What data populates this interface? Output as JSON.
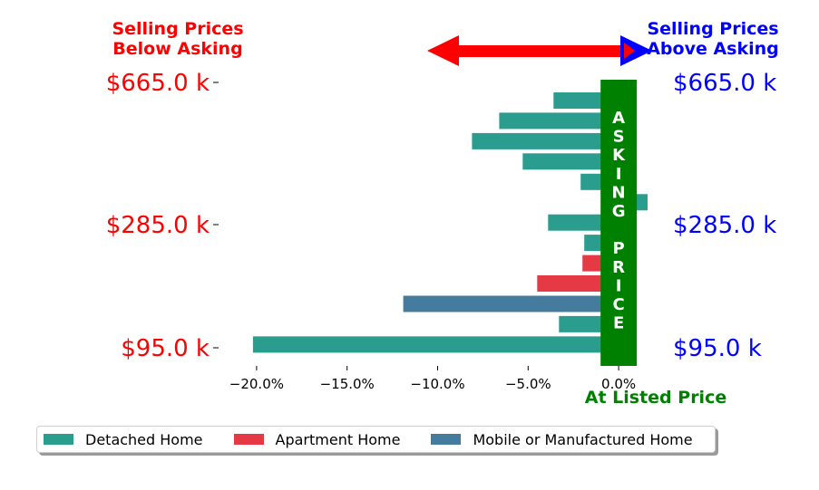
{
  "header": {
    "left_line1": "Selling Prices",
    "left_line2": "Below Asking",
    "right_line1": "Selling Prices",
    "right_line2": "Above Asking"
  },
  "colors": {
    "below": "#ff0000",
    "above": "#0000ff",
    "asking": "#008000",
    "arrow": "#ff0000",
    "arrow_head_right": "#0000ff"
  },
  "legend": {
    "items": [
      {
        "label": "Detached Home",
        "color": "#2a9d8f"
      },
      {
        "label": "Apartment Home",
        "color": "#e63946"
      },
      {
        "label": "Mobile or Manufactured Home",
        "color": "#457b9d"
      }
    ]
  },
  "chart_data": {
    "type": "bar",
    "orientation": "horizontal",
    "x_ticks": [
      -20,
      -15,
      -10,
      -5,
      0
    ],
    "x_tick_labels": [
      "−20.0%",
      "−15.0%",
      "−10.0%",
      "−5.0%",
      "0.0%"
    ],
    "xlim": [
      -22.2,
      3.2
    ],
    "xlabel": "At Listed Price",
    "asking_band": {
      "from": -1.0,
      "to": 1.0,
      "letters": [
        "A",
        "S",
        "K",
        "I",
        "N",
        "G",
        "",
        "P",
        "R",
        "I",
        "C",
        "E"
      ]
    },
    "y_tick_labels_left": [
      "$665.0 k",
      "$285.0 k",
      "$95.0 k"
    ],
    "y_tick_labels_right": [
      "$665.0 k",
      "$285.0 k",
      "$95.0 k"
    ],
    "bars": [
      {
        "value": -3.6,
        "type": "Detached Home"
      },
      {
        "value": -6.6,
        "type": "Detached Home"
      },
      {
        "value": -8.1,
        "type": "Detached Home"
      },
      {
        "value": -5.3,
        "type": "Detached Home"
      },
      {
        "value": -2.1,
        "type": "Detached Home"
      },
      {
        "value": 1.6,
        "type": "Detached Home"
      },
      {
        "value": -3.9,
        "type": "Detached Home"
      },
      {
        "value": -1.9,
        "type": "Detached Home"
      },
      {
        "value": -2.0,
        "type": "Apartment Home"
      },
      {
        "value": -4.5,
        "type": "Apartment Home"
      },
      {
        "value": -11.9,
        "type": "Mobile or Manufactured Home"
      },
      {
        "value": -3.3,
        "type": "Detached Home"
      },
      {
        "value": -20.2,
        "type": "Detached Home"
      }
    ]
  }
}
